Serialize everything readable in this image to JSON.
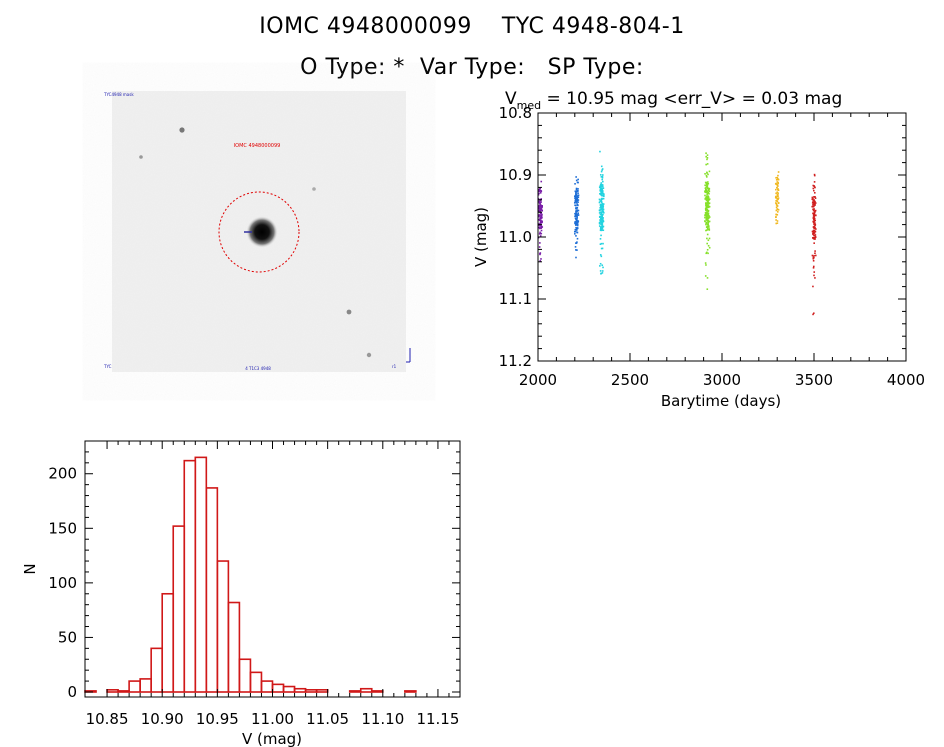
{
  "header": {
    "title_line1": "IOMC 4948000099    TYC 4948-804-1",
    "title_line2": "O Type: *  Var Type:   SP Type:"
  },
  "image_panel": {
    "target_label": "IOMC 4948000099",
    "corner_tl": "TYC4948 mask",
    "corner_bl": "TYC",
    "corner_bc": "4 T1C3 4948",
    "corner_br": "r1"
  },
  "chart_data": [
    {
      "type": "scatter",
      "title_prefix": "V",
      "title_sub": "med",
      "title_rest": " = 10.95 mag <err_V> = 0.03 mag",
      "xlabel": "Barytime (days)",
      "ylabel": "V (mag)",
      "xlim": [
        2000,
        4000
      ],
      "ylim": [
        11.2,
        10.8
      ],
      "y_inverted": true,
      "xticks": [
        "2000",
        "2500",
        "3000",
        "3500",
        "4000"
      ],
      "yticks": [
        "10.8",
        "10.9",
        "11.0",
        "11.1",
        "11.2"
      ],
      "series": [
        {
          "color": "#7a1fa8",
          "x": [
            2010,
            2015
          ],
          "ymin": [
            10.9,
            10.95
          ],
          "ymax": [
            11.04,
            11.0
          ],
          "spread": [
            10.955,
            10.96
          ]
        },
        {
          "color": "#1f6fd6",
          "x": [
            2208,
            2212
          ],
          "ymin": [
            10.89,
            10.9
          ],
          "ymax": [
            11.04,
            11.02
          ],
          "spread": [
            10.96,
            10.955
          ]
        },
        {
          "color": "#23d3e0",
          "x": [
            2342,
            2346,
            2350
          ],
          "ymin": [
            10.86,
            10.89,
            10.9
          ],
          "ymax": [
            11.1,
            11.06,
            11.02
          ],
          "spread": [
            10.95,
            10.95,
            10.955
          ]
        },
        {
          "color": "#86e02a",
          "x": [
            2915,
            2920,
            2925
          ],
          "ymin": [
            10.84,
            10.87,
            10.89
          ],
          "ymax": [
            11.1,
            11.06,
            11.03
          ],
          "spread": [
            10.945,
            10.95,
            10.955
          ]
        },
        {
          "color": "#f0b820",
          "x": [
            3300
          ],
          "ymin": [
            10.89
          ],
          "ymax": [
            10.98
          ],
          "spread": [
            10.935
          ]
        },
        {
          "color": "#d02020",
          "x": [
            3498,
            3502
          ],
          "ymin": [
            10.88,
            10.91
          ],
          "ymax": [
            11.15,
            11.08
          ],
          "spread": [
            10.97,
            10.975
          ]
        }
      ]
    },
    {
      "type": "bar",
      "title": "",
      "xlabel": "V (mag)",
      "ylabel": "N",
      "xlim": [
        10.83,
        11.17
      ],
      "ylim": [
        0,
        230
      ],
      "xticks": [
        "10.85",
        "10.90",
        "10.95",
        "11.00",
        "11.05",
        "11.10",
        "11.15"
      ],
      "yticks": [
        "0",
        "50",
        "100",
        "150",
        "200"
      ],
      "bin_width": 0.01,
      "bin_starts": [
        10.83,
        10.84,
        10.85,
        10.86,
        10.87,
        10.88,
        10.89,
        10.9,
        10.91,
        10.92,
        10.93,
        10.94,
        10.95,
        10.96,
        10.97,
        10.98,
        10.99,
        11.0,
        11.01,
        11.02,
        11.03,
        11.04,
        11.05,
        11.06,
        11.07,
        11.08,
        11.09,
        11.1,
        11.11,
        11.12,
        11.13,
        11.14,
        11.15,
        11.16
      ],
      "values": [
        1,
        0,
        2,
        1,
        10,
        12,
        40,
        90,
        152,
        212,
        215,
        187,
        120,
        82,
        30,
        18,
        10,
        7,
        5,
        3,
        2,
        2,
        0,
        0,
        1,
        3,
        1,
        0,
        0,
        1,
        0,
        0,
        0,
        0
      ],
      "color": "#d01818"
    }
  ]
}
